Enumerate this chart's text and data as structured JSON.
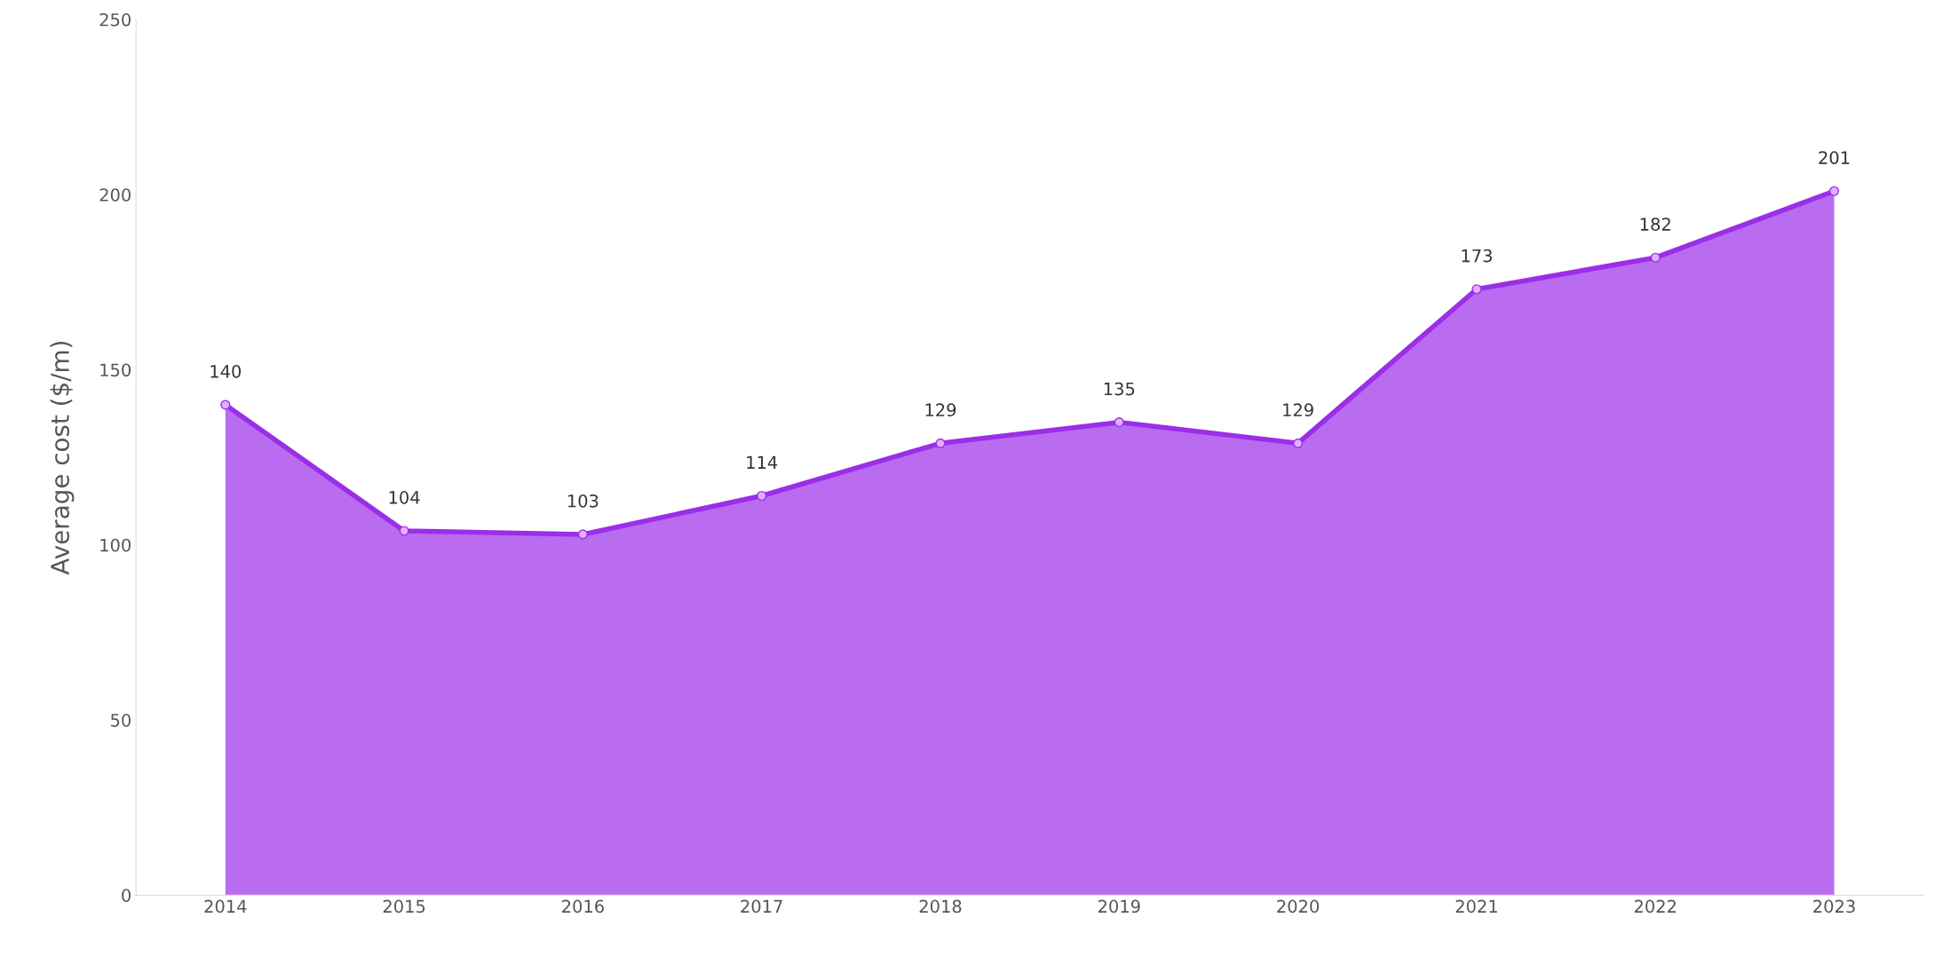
{
  "chart_data": {
    "type": "area",
    "ylabel": "Average cost ($/m)",
    "categories": [
      "2014",
      "2015",
      "2016",
      "2017",
      "2018",
      "2019",
      "2020",
      "2021",
      "2022",
      "2023"
    ],
    "series": [
      {
        "color": "#9b2ee8",
        "values": [
          140,
          104,
          103,
          114,
          129,
          135,
          129,
          173,
          182,
          201
        ]
      }
    ],
    "ylim": [
      0,
      250
    ],
    "yticks": [
      0,
      50,
      100,
      150,
      200,
      250
    ],
    "grid": false,
    "marker": "circle",
    "data_labels": true
  }
}
